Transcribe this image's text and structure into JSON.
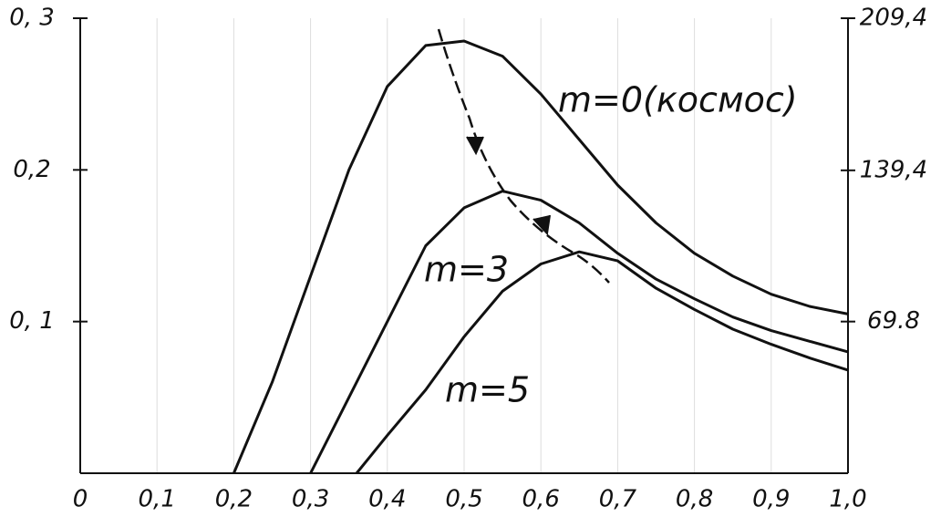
{
  "chart_data": {
    "type": "line",
    "xlim": [
      0,
      1.0
    ],
    "xticks": [
      0,
      {
        "value": 0.1,
        "label": "0,1"
      },
      {
        "value": 0.2,
        "label": "0,2"
      },
      {
        "value": 0.3,
        "label": "0,3"
      },
      {
        "value": 0.4,
        "label": "0,4"
      },
      {
        "value": 0.5,
        "label": "0,5"
      },
      {
        "value": 0.6,
        "label": "0,6"
      },
      {
        "value": 0.7,
        "label": "0,7"
      },
      {
        "value": 0.8,
        "label": "0,8"
      },
      {
        "value": 0.9,
        "label": "0,9"
      },
      {
        "value": 1.0,
        "label": "1,0"
      }
    ],
    "ylim": [
      0,
      0.3
    ],
    "yticks": [
      {
        "value": 0.1,
        "label": "0, 1"
      },
      {
        "value": 0.2,
        "label": "0,2"
      },
      {
        "value": 0.3,
        "label": "0, 3"
      }
    ],
    "y2lim": [
      0,
      209.4
    ],
    "y2ticks": [
      69.8,
      {
        "value": 139.4,
        "label": "139,4"
      },
      {
        "value": 209.4,
        "label": "209,4"
      }
    ],
    "grid": true,
    "series": [
      {
        "name": "m=0(космос)",
        "color": "#111111",
        "x": [
          0.2,
          0.25,
          0.3,
          0.35,
          0.4,
          0.45,
          0.5,
          0.55,
          0.6,
          0.65,
          0.7,
          0.75,
          0.8,
          0.85,
          0.9,
          0.95,
          1.0
        ],
        "values": [
          0,
          0.06,
          0.13,
          0.2,
          0.255,
          0.282,
          0.285,
          0.275,
          0.25,
          0.22,
          0.19,
          0.165,
          0.145,
          0.13,
          0.118,
          0.11,
          0.105
        ]
      },
      {
        "name": "m=3",
        "color": "#111111",
        "x": [
          0.3,
          0.35,
          0.4,
          0.45,
          0.5,
          0.55,
          0.6,
          0.65,
          0.7,
          0.75,
          0.8,
          0.85,
          0.9,
          0.95,
          1.0
        ],
        "values": [
          0,
          0.05,
          0.1,
          0.15,
          0.175,
          0.186,
          0.18,
          0.165,
          0.145,
          0.128,
          0.115,
          0.103,
          0.094,
          0.087,
          0.08
        ]
      },
      {
        "name": "m=5",
        "color": "#111111",
        "x": [
          0.36,
          0.4,
          0.45,
          0.5,
          0.55,
          0.6,
          0.65,
          0.7,
          0.75,
          0.8,
          0.85,
          0.9,
          0.95,
          1.0
        ],
        "values": [
          0,
          0.025,
          0.055,
          0.09,
          0.12,
          0.138,
          0.146,
          0.14,
          0.122,
          0.108,
          0.095,
          0.085,
          0.076,
          0.068
        ]
      }
    ]
  }
}
